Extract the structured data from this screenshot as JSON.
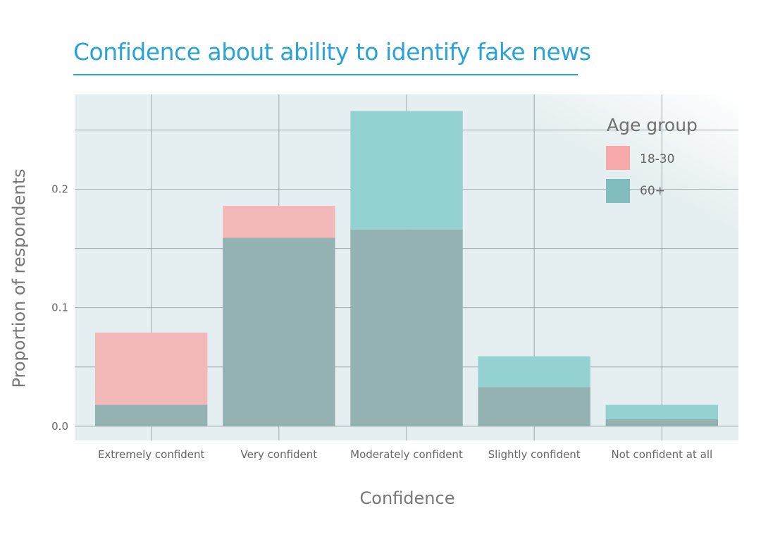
{
  "chart_data": {
    "type": "bar",
    "title": "Confidence about ability to identify fake news",
    "xlabel": "Confidence",
    "ylabel": "Proportion of respondents",
    "categories": [
      "Extremely confident",
      "Very confident",
      "Moderately confident",
      "Slightly confident",
      "Not confident at all"
    ],
    "series": [
      {
        "name": "18-30",
        "values": [
          0.079,
          0.186,
          0.166,
          0.033,
          0.006
        ],
        "color": "#f7a8a8"
      },
      {
        "name": "60+",
        "values": [
          0.018,
          0.159,
          0.266,
          0.059,
          0.018
        ],
        "color": "#80bcbc"
      }
    ],
    "overlap_color": "#94b2b2",
    "only_18_30_color": "#f3b9b8",
    "only_60_color": "#94d2d2",
    "yticks": [
      0.0,
      0.1,
      0.2
    ],
    "ytick_labels": [
      "0.0",
      "0.1",
      "0.2"
    ],
    "ylim": [
      -0.012,
      0.28
    ],
    "grid": true,
    "legend": {
      "title": "Age group",
      "placement": "top-right"
    },
    "bar_mode": "overlaid"
  }
}
